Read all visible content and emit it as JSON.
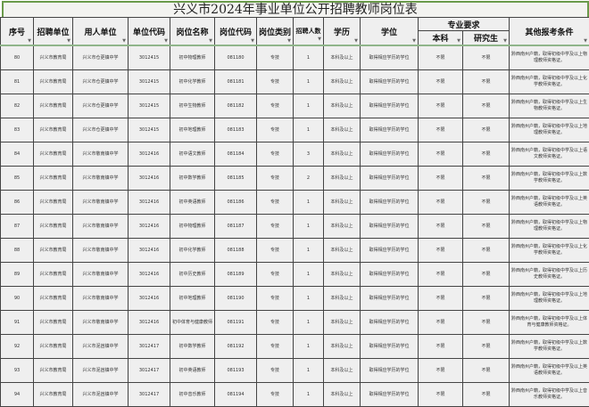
{
  "title": "兴义市2024年事业单位公开招聘教师岗位表",
  "headers": {
    "seq": "序号",
    "recruiter": "招聘单位",
    "employer": "用人单位",
    "unit_code": "单位代码",
    "post_name": "岗位名称",
    "post_code": "岗位代码",
    "post_type": "岗位类别",
    "count": "招聘人数",
    "education": "学历",
    "degree": "学位",
    "major_group": "专业要求",
    "bachelor": "本科",
    "graduate": "研究生",
    "other": "其他报考条件"
  },
  "rows": [
    {
      "seq": "80",
      "recruiter": "兴义市教育局",
      "employer": "兴义市仓更镇中学",
      "unit_code": "3012415",
      "post_name": "初中物理教师",
      "post_code": "081180",
      "post_type": "专技",
      "count": "1",
      "education": "本科及以上",
      "degree": "取得相应学历的学位",
      "bachelor": "不限",
      "graduate": "不限",
      "other": "黔西南州户籍，取得初级中学及以上物理教师资格证。"
    },
    {
      "seq": "81",
      "recruiter": "兴义市教育局",
      "employer": "兴义市仓更镇中学",
      "unit_code": "3012415",
      "post_name": "初中化学教师",
      "post_code": "081181",
      "post_type": "专技",
      "count": "1",
      "education": "本科及以上",
      "degree": "取得相应学历的学位",
      "bachelor": "不限",
      "graduate": "不限",
      "other": "黔西南州户籍，取得初级中学及以上化学教师资格证。"
    },
    {
      "seq": "82",
      "recruiter": "兴义市教育局",
      "employer": "兴义市仓更镇中学",
      "unit_code": "3012415",
      "post_name": "初中生物教师",
      "post_code": "081182",
      "post_type": "专技",
      "count": "1",
      "education": "本科及以上",
      "degree": "取得相应学历的学位",
      "bachelor": "不限",
      "graduate": "不限",
      "other": "黔西南州户籍，取得初级中学及以上生物教师资格证。"
    },
    {
      "seq": "83",
      "recruiter": "兴义市教育局",
      "employer": "兴义市仓更镇中学",
      "unit_code": "3012415",
      "post_name": "初中地理教师",
      "post_code": "081183",
      "post_type": "专技",
      "count": "1",
      "education": "本科及以上",
      "degree": "取得相应学历的学位",
      "bachelor": "不限",
      "graduate": "不限",
      "other": "黔西南州户籍，取得初级中学及以上地理教师资格证。"
    },
    {
      "seq": "84",
      "recruiter": "兴义市教育局",
      "employer": "兴义市敬南镇中学",
      "unit_code": "3012416",
      "post_name": "初中语文教师",
      "post_code": "081184",
      "post_type": "专技",
      "count": "3",
      "education": "本科及以上",
      "degree": "取得相应学历的学位",
      "bachelor": "不限",
      "graduate": "不限",
      "other": "黔西南州户籍，取得初级中学及以上语文教师资格证。"
    },
    {
      "seq": "85",
      "recruiter": "兴义市教育局",
      "employer": "兴义市敬南镇中学",
      "unit_code": "3012416",
      "post_name": "初中数学教师",
      "post_code": "081185",
      "post_type": "专技",
      "count": "2",
      "education": "本科及以上",
      "degree": "取得相应学历的学位",
      "bachelor": "不限",
      "graduate": "不限",
      "other": "黔西南州户籍，取得初级中学及以上数学教师资格证。"
    },
    {
      "seq": "86",
      "recruiter": "兴义市教育局",
      "employer": "兴义市敬南镇中学",
      "unit_code": "3012416",
      "post_name": "初中英语教师",
      "post_code": "081186",
      "post_type": "专技",
      "count": "1",
      "education": "本科及以上",
      "degree": "取得相应学历的学位",
      "bachelor": "不限",
      "graduate": "不限",
      "other": "黔西南州户籍，取得初级中学及以上英语教师资格证。"
    },
    {
      "seq": "87",
      "recruiter": "兴义市教育局",
      "employer": "兴义市敬南镇中学",
      "unit_code": "3012416",
      "post_name": "初中物理教师",
      "post_code": "081187",
      "post_type": "专技",
      "count": "1",
      "education": "本科及以上",
      "degree": "取得相应学历的学位",
      "bachelor": "不限",
      "graduate": "不限",
      "other": "黔西南州户籍，取得初级中学及以上物理教师资格证。"
    },
    {
      "seq": "88",
      "recruiter": "兴义市教育局",
      "employer": "兴义市敬南镇中学",
      "unit_code": "3012416",
      "post_name": "初中化学教师",
      "post_code": "081188",
      "post_type": "专技",
      "count": "1",
      "education": "本科及以上",
      "degree": "取得相应学历的学位",
      "bachelor": "不限",
      "graduate": "不限",
      "other": "黔西南州户籍，取得初级中学及以上化学教师资格证。"
    },
    {
      "seq": "89",
      "recruiter": "兴义市教育局",
      "employer": "兴义市敬南镇中学",
      "unit_code": "3012416",
      "post_name": "初中历史教师",
      "post_code": "081189",
      "post_type": "专技",
      "count": "1",
      "education": "本科及以上",
      "degree": "取得相应学历的学位",
      "bachelor": "不限",
      "graduate": "不限",
      "other": "黔西南州户籍，取得初级中学及以上历史教师资格证。"
    },
    {
      "seq": "90",
      "recruiter": "兴义市教育局",
      "employer": "兴义市敬南镇中学",
      "unit_code": "3012416",
      "post_name": "初中地理教师",
      "post_code": "081190",
      "post_type": "专技",
      "count": "1",
      "education": "本科及以上",
      "degree": "取得相应学历的学位",
      "bachelor": "不限",
      "graduate": "不限",
      "other": "黔西南州户籍，取得初级中学及以上地理教师资格证。"
    },
    {
      "seq": "91",
      "recruiter": "兴义市教育局",
      "employer": "兴义市敬南镇中学",
      "unit_code": "3012416",
      "post_name": "初中体育与健康教师",
      "post_code": "081191",
      "post_type": "专技",
      "count": "1",
      "education": "本科及以上",
      "degree": "取得相应学历的学位",
      "bachelor": "不限",
      "graduate": "不限",
      "other": "黔西南州户籍，取得初级中学及以上体育与健康教师资格证。"
    },
    {
      "seq": "92",
      "recruiter": "兴义市教育局",
      "employer": "兴义市泥凼镇中学",
      "unit_code": "3012417",
      "post_name": "初中数学教师",
      "post_code": "081192",
      "post_type": "专技",
      "count": "1",
      "education": "本科及以上",
      "degree": "取得相应学历的学位",
      "bachelor": "不限",
      "graduate": "不限",
      "other": "黔西南州户籍，取得初级中学及以上数学教师资格证。"
    },
    {
      "seq": "93",
      "recruiter": "兴义市教育局",
      "employer": "兴义市泥凼镇中学",
      "unit_code": "3012417",
      "post_name": "初中英语教师",
      "post_code": "081193",
      "post_type": "专技",
      "count": "1",
      "education": "本科及以上",
      "degree": "取得相应学历的学位",
      "bachelor": "不限",
      "graduate": "不限",
      "other": "黔西南州户籍，取得初级中学及以上英语教师资格证。"
    },
    {
      "seq": "94",
      "recruiter": "兴义市教育局",
      "employer": "兴义市泥凼镇中学",
      "unit_code": "3012417",
      "post_name": "初中音乐教师",
      "post_code": "081194",
      "post_type": "专技",
      "count": "1",
      "education": "本科及以上",
      "degree": "取得相应学历的学位",
      "bachelor": "不限",
      "graduate": "不限",
      "other": "黔西南州户籍，取得初级中学及以上音乐教师资格证。"
    }
  ]
}
